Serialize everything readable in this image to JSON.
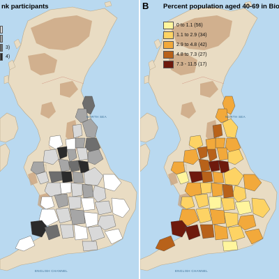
{
  "panel_a": {
    "title": "nk participants",
    "legend": {
      "partial_labels": [
        "",
        "",
        "3)",
        "4)"
      ]
    }
  },
  "panel_b": {
    "letter": "B",
    "title": "Percent population aged 40-69 in Biob",
    "legend": {
      "items": [
        {
          "label": "0 to 1.1 (56)",
          "color": "#fff59d"
        },
        {
          "label": "1.1 to 2.9 (34)",
          "color": "#fdd364"
        },
        {
          "label": "2.9 to 4.8 (42)",
          "color": "#f2a93b"
        },
        {
          "label": "4.8 to 7.3 (27)",
          "color": "#b8621a"
        },
        {
          "label": "7.3 - 11.5 (17)",
          "color": "#6e1a0d"
        }
      ]
    }
  },
  "sea_labels": {
    "north_sea": "NORTH SEA",
    "english_channel": "ENGLISH CHANNEL"
  },
  "colors": {
    "sea": "#b9d9f0",
    "land": "#e9dcc3",
    "highland": "#c8a27c",
    "grey_scale": [
      "#ffffff",
      "#d9d9d9",
      "#a6a6a6",
      "#6e6e6e",
      "#2b2b2b"
    ]
  }
}
